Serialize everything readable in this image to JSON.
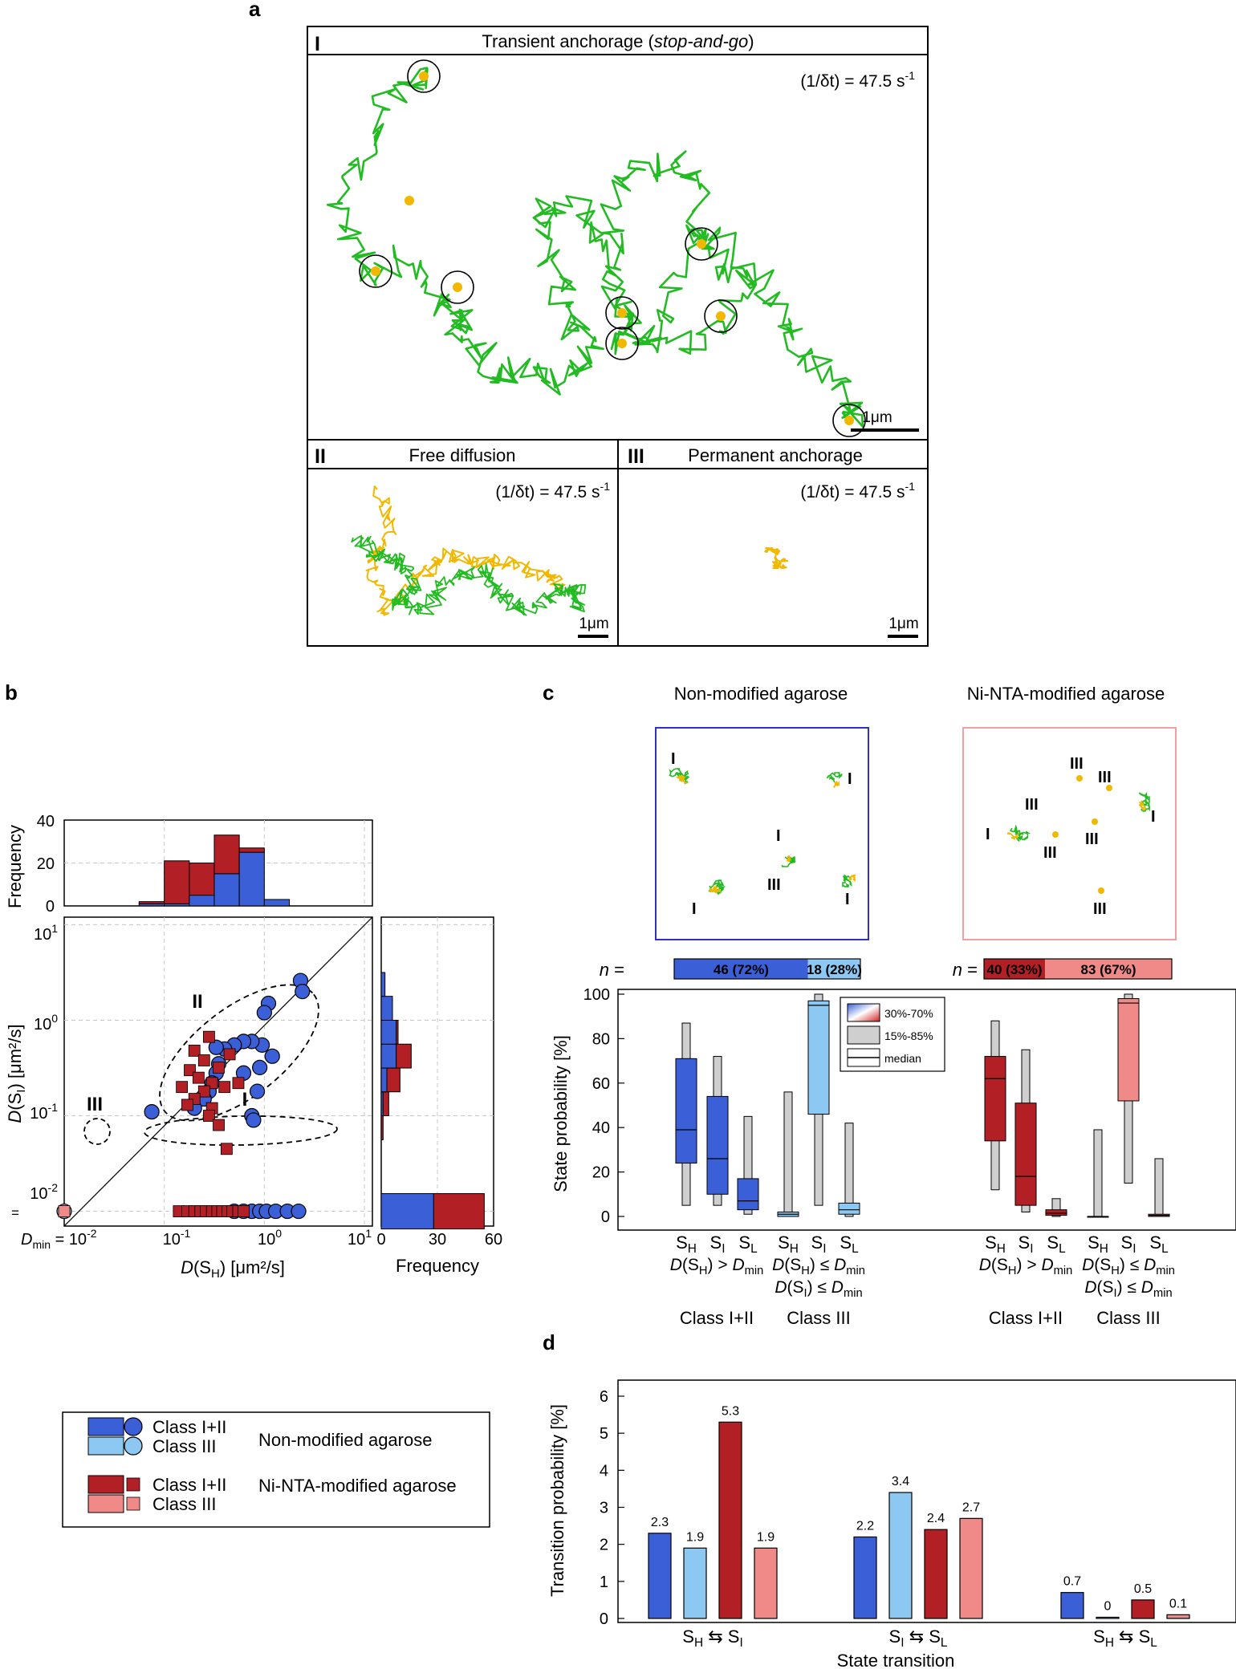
{
  "panel_a": {
    "letter": "a",
    "sub_I": {
      "numeral": "I",
      "title_pre": "Transient anchorage (",
      "title_italic": "stop-and-go",
      "title_post": ")",
      "rate": "(1/δt) = 47.5 s",
      "rate_exp": "-1",
      "scale": "1μm"
    },
    "sub_II": {
      "numeral": "II",
      "title": "Free diffusion",
      "rate": "(1/δt) = 47.5 s",
      "rate_exp": "-1",
      "scale": "1μm"
    },
    "sub_III": {
      "numeral": "III",
      "title": "Permanent anchorage",
      "rate": "(1/δt) = 47.5 s",
      "rate_exp": "-1",
      "scale": "1μm"
    },
    "colors": {
      "track": "#22bb22",
      "anchored": "#f2b800"
    }
  },
  "panel_b": {
    "letter": "b",
    "hist_ylabel": "Frequency",
    "hist_yticks": [
      "40",
      "20",
      "0"
    ],
    "y_label_D": "D",
    "y_label_rest": "(S",
    "y_label_sub": "I",
    "y_label_unit": ") [μm²/s]",
    "x_label_D": "D",
    "x_label_rest": "(S",
    "x_label_sub": "H",
    "x_label_unit": ") [μm²/s]",
    "y_ticks": [
      {
        "base": "10",
        "exp": "1"
      },
      {
        "base": "10",
        "exp": "0"
      },
      {
        "base": "10",
        "exp": "-1"
      },
      {
        "base": "10",
        "exp": "-2"
      }
    ],
    "x_ticks": [
      {
        "base": "10",
        "exp": "-1"
      },
      {
        "base": "10",
        "exp": "0"
      },
      {
        "base": "10",
        "exp": "1"
      }
    ],
    "dmin_label": "D",
    "dmin_sub": "min",
    "dmin_eq": " = ",
    "dmin_val": "10",
    "dmin_exp": "-2",
    "eq_sign": "=",
    "right_hist_xticks": [
      "0",
      "30",
      "60"
    ],
    "right_hist_xlabel": "Frequency",
    "cluster_labels": [
      "II",
      "III",
      "I"
    ]
  },
  "legend": {
    "rows": [
      {
        "class": "Class I+II",
        "color": "#3a5fd6"
      },
      {
        "class": "Class III",
        "color": "#8cc8f2"
      },
      {
        "class": "Class I+II",
        "color": "#b21f24"
      },
      {
        "class": "Class III",
        "color": "#f08a88"
      }
    ],
    "group_non": "Non-modified agarose",
    "group_ni": "Ni-NTA-modified agarose"
  },
  "panel_c": {
    "letter": "c",
    "title_non": "Non-modified agarose",
    "title_ni": "Ni-NTA-modified agarose",
    "n_label": "n",
    "n_eq": " =",
    "n_non": [
      "46 (72%)",
      "18 (28%)"
    ],
    "n_ni": [
      "40 (33%)",
      "83 (67%)"
    ],
    "ylabel": "State probability [%]",
    "yticks": [
      "100",
      "80",
      "60",
      "40",
      "20",
      "0"
    ],
    "legend": [
      "30%-70%",
      "15%-85%",
      "median"
    ],
    "state_labels": [
      {
        "s": "S",
        "sub": "H"
      },
      {
        "s": "S",
        "sub": "I"
      },
      {
        "s": "S",
        "sub": "L"
      }
    ],
    "cond_12": {
      "D": "D",
      "pre": "(S",
      "sub": "H",
      "post": ") > ",
      "D2": "D",
      "sub2": "min"
    },
    "cond_3a": {
      "D": "D",
      "pre": "(S",
      "sub": "H",
      "post": ") ≤ ",
      "D2": "D",
      "sub2": "min"
    },
    "cond_3b": {
      "D": "D",
      "pre": "(S",
      "sub": "I",
      "post": ") ≤ ",
      "D2": "D",
      "sub2": "min"
    },
    "class_12": "Class I+II",
    "class_3": "Class III",
    "micro_labels_non": [
      "I",
      "I",
      "I",
      "III",
      "I",
      "I"
    ],
    "micro_labels_ni": [
      "III",
      "III",
      "III",
      "I",
      "III",
      "III",
      "I",
      "III"
    ]
  },
  "panel_d": {
    "letter": "d",
    "ylabel": "Transition probability [%]",
    "xlabel": "State transition",
    "yticks": [
      "6",
      "5",
      "4",
      "3",
      "2",
      "1",
      "0"
    ]
  },
  "chart_data": [
    {
      "type": "scatter",
      "xlabel": "D(SH) [μm²/s]",
      "ylabel": "D(SI) [μm²/s]",
      "xscale": "log",
      "yscale": "log",
      "xlim": [
        0.01,
        12
      ],
      "ylim": [
        0.007,
        12
      ],
      "grid": true,
      "series": [
        {
          "name": "Class I+II",
          "marker": "circle",
          "color": "#3a5fd6",
          "points": [
            [
              2.3,
              2.6
            ],
            [
              2.4,
              2.0
            ],
            [
              1.1,
              1.5
            ],
            [
              1.0,
              1.2
            ],
            [
              1.2,
              0.42
            ],
            [
              0.95,
              0.55
            ],
            [
              0.75,
              0.6
            ],
            [
              0.62,
              0.6
            ],
            [
              0.5,
              0.55
            ],
            [
              0.4,
              0.5
            ],
            [
              0.33,
              0.52
            ],
            [
              0.35,
              0.35
            ],
            [
              0.33,
              0.28
            ],
            [
              0.3,
              0.22
            ],
            [
              0.28,
              0.18
            ],
            [
              0.25,
              0.15
            ],
            [
              0.62,
              0.28
            ],
            [
              0.9,
              0.32
            ],
            [
              0.85,
              0.18
            ],
            [
              0.75,
              0.1
            ],
            [
              0.78,
              0.09
            ],
            [
              0.2,
              0.12
            ],
            [
              0.075,
              0.11
            ],
            [
              0.5,
              0.01
            ],
            [
              0.62,
              0.01
            ],
            [
              0.75,
              0.01
            ],
            [
              0.9,
              0.01
            ],
            [
              1.05,
              0.01
            ],
            [
              1.3,
              0.01
            ],
            [
              1.7,
              0.01
            ],
            [
              2.2,
              0.01
            ]
          ]
        },
        {
          "name": "Class III",
          "marker": "circle",
          "color": "#8cc8f2",
          "points": [
            [
              0.01,
              0.01
            ]
          ]
        },
        {
          "name": "Class I+II",
          "marker": "square",
          "color": "#b21f24",
          "points": [
            [
              0.28,
              0.67
            ],
            [
              0.2,
              0.48
            ],
            [
              0.45,
              0.44
            ],
            [
              0.25,
              0.38
            ],
            [
              0.35,
              0.32
            ],
            [
              0.18,
              0.3
            ],
            [
              0.22,
              0.25
            ],
            [
              0.3,
              0.22
            ],
            [
              0.15,
              0.2
            ],
            [
              0.4,
              0.2
            ],
            [
              0.25,
              0.18
            ],
            [
              0.2,
              0.15
            ],
            [
              0.3,
              0.12
            ],
            [
              0.17,
              0.13
            ],
            [
              0.28,
              0.1
            ],
            [
              0.35,
              0.08
            ],
            [
              0.55,
              0.22
            ],
            [
              0.42,
              0.045
            ],
            [
              0.14,
              0.01
            ],
            [
              0.17,
              0.01
            ],
            [
              0.2,
              0.01
            ],
            [
              0.23,
              0.01
            ],
            [
              0.26,
              0.01
            ],
            [
              0.3,
              0.01
            ],
            [
              0.34,
              0.01
            ],
            [
              0.38,
              0.01
            ],
            [
              0.43,
              0.01
            ],
            [
              0.48,
              0.01
            ],
            [
              0.55,
              0.01
            ],
            [
              0.62,
              0.01
            ]
          ]
        },
        {
          "name": "Class III",
          "marker": "square",
          "color": "#f08a88",
          "points": [
            [
              0.01,
              0.01
            ]
          ]
        }
      ]
    },
    {
      "type": "bar",
      "title": "",
      "orientation": "vertical",
      "xscale": "log",
      "bin_edges": [
        0.056,
        0.1,
        0.178,
        0.316,
        0.562,
        1.0,
        1.78,
        3.16
      ],
      "ylim": [
        0,
        40
      ],
      "series": [
        {
          "name": "Class I+II",
          "color": "#3a5fd6",
          "values": [
            1,
            1,
            5,
            15,
            25,
            3,
            0
          ]
        },
        {
          "name": "Class I+II",
          "color": "#b21f24",
          "values": [
            1,
            20,
            15,
            18,
            2,
            0,
            0
          ]
        }
      ]
    },
    {
      "type": "bar",
      "orientation": "horizontal",
      "yscale": "log",
      "bin_edges": [
        0.056,
        0.1,
        0.178,
        0.316,
        0.562,
        1.0,
        1.78,
        3.16
      ],
      "xlim": [
        0,
        60
      ],
      "extra_bin": {
        "at": 0.01,
        "values": [
          28,
          27
        ],
        "colors": [
          "#3a5fd6",
          "#b21f24"
        ]
      },
      "series": [
        {
          "name": "Class I+II",
          "color": "#3a5fd6",
          "values": [
            0,
            1,
            3,
            8,
            8,
            6,
            2
          ]
        },
        {
          "name": "Class I+II",
          "color": "#b21f24",
          "values": [
            1,
            3,
            7,
            8,
            1,
            0,
            0
          ]
        }
      ]
    },
    {
      "type": "box",
      "ylabel": "State probability [%]",
      "ylim": [
        0,
        100
      ],
      "categories": [
        "SH",
        "SI",
        "SL",
        "SH",
        "SI",
        "SL",
        "SH",
        "SI",
        "SL",
        "SH",
        "SI",
        "SL"
      ],
      "groups": [
        "Non-modified Class I+II",
        "Non-modified Class III",
        "Ni-NTA Class I+II",
        "Ni-NTA Class III"
      ],
      "colors": [
        "#3a5fd6",
        "#8cc8f2",
        "#b21f24",
        "#f08a88"
      ],
      "boxes": [
        {
          "p15": 5,
          "q30": 24,
          "median": 39,
          "q70": 71,
          "p85": 87
        },
        {
          "p15": 5,
          "q30": 10,
          "median": 26,
          "q70": 54,
          "p85": 72
        },
        {
          "p15": 1,
          "q30": 3,
          "median": 7,
          "q70": 17,
          "p85": 45
        },
        {
          "p15": 0,
          "q30": 0,
          "median": 1,
          "q70": 2,
          "p85": 56
        },
        {
          "p15": 5,
          "q30": 46,
          "median": 95,
          "q70": 97,
          "p85": 100
        },
        {
          "p15": 0,
          "q30": 1,
          "median": 3,
          "q70": 6,
          "p85": 42
        },
        {
          "p15": 12,
          "q30": 34,
          "median": 62,
          "q70": 72,
          "p85": 88
        },
        {
          "p15": 2,
          "q30": 5,
          "median": 18,
          "q70": 51,
          "p85": 75
        },
        {
          "p15": 0,
          "q30": 0.5,
          "median": 1.5,
          "q70": 3,
          "p85": 8
        },
        {
          "p15": 0,
          "q30": 0,
          "median": 0,
          "q70": 0,
          "p85": 39
        },
        {
          "p15": 15,
          "q30": 52,
          "median": 96,
          "q70": 98,
          "p85": 100
        },
        {
          "p15": 0,
          "q30": 0,
          "median": 0.5,
          "q70": 1,
          "p85": 26
        }
      ]
    },
    {
      "type": "bar",
      "xlabel": "State transition",
      "ylabel": "Transition probability [%]",
      "ylim": [
        0,
        6
      ],
      "categories": [
        "SH ⇆ SI",
        "SI ⇆ SL",
        "SH ⇆ SL"
      ],
      "series": [
        {
          "name": "Non-modified Class I+II",
          "color": "#3a5fd6",
          "values": [
            2.3,
            2.2,
            0.7
          ]
        },
        {
          "name": "Non-modified Class III",
          "color": "#8cc8f2",
          "values": [
            1.9,
            3.4,
            0
          ]
        },
        {
          "name": "Ni-NTA Class I+II",
          "color": "#b21f24",
          "values": [
            5.3,
            2.4,
            0.5
          ]
        },
        {
          "name": "Ni-NTA Class III",
          "color": "#f08a88",
          "values": [
            1.9,
            2.7,
            0.1
          ]
        }
      ],
      "data_labels": [
        [
          "2.3",
          "2.2",
          "0.7"
        ],
        [
          "1.9",
          "3.4",
          "0"
        ],
        [
          "5.3",
          "2.4",
          "0.5"
        ],
        [
          "1.9",
          "2.7",
          "0.1"
        ]
      ],
      "cat_labels": [
        {
          "a": "S",
          "as": "H",
          "b": "S",
          "bs": "I"
        },
        {
          "a": "S",
          "as": "I",
          "b": "S",
          "bs": "L"
        },
        {
          "a": "S",
          "as": "H",
          "b": "S",
          "bs": "L"
        }
      ]
    }
  ]
}
